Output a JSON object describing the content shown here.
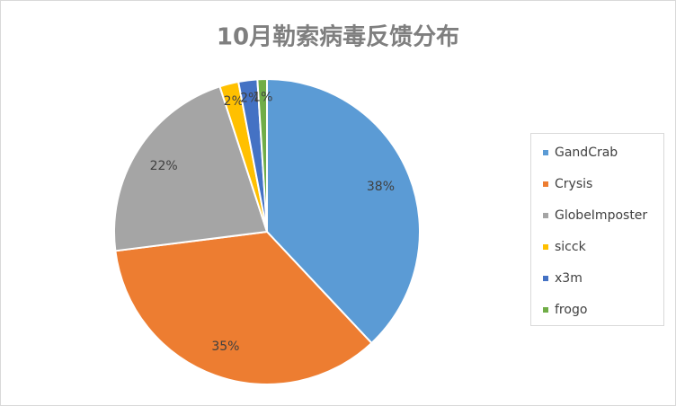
{
  "chart_data": {
    "type": "pie",
    "title": "10月勒索病毒反馈分布",
    "categories": [
      "GandCrab",
      "Crysis",
      "GlobeImposter",
      "sicck",
      "x3m",
      "frogo"
    ],
    "values": [
      38,
      35,
      22,
      2,
      2,
      1
    ],
    "value_labels": [
      "38%",
      "35%",
      "22%",
      "2%",
      "2%",
      "1%"
    ],
    "colors": [
      "#5b9bd5",
      "#ed7d31",
      "#a5a5a5",
      "#ffc000",
      "#4472c4",
      "#70ad47"
    ],
    "legend": "right"
  }
}
